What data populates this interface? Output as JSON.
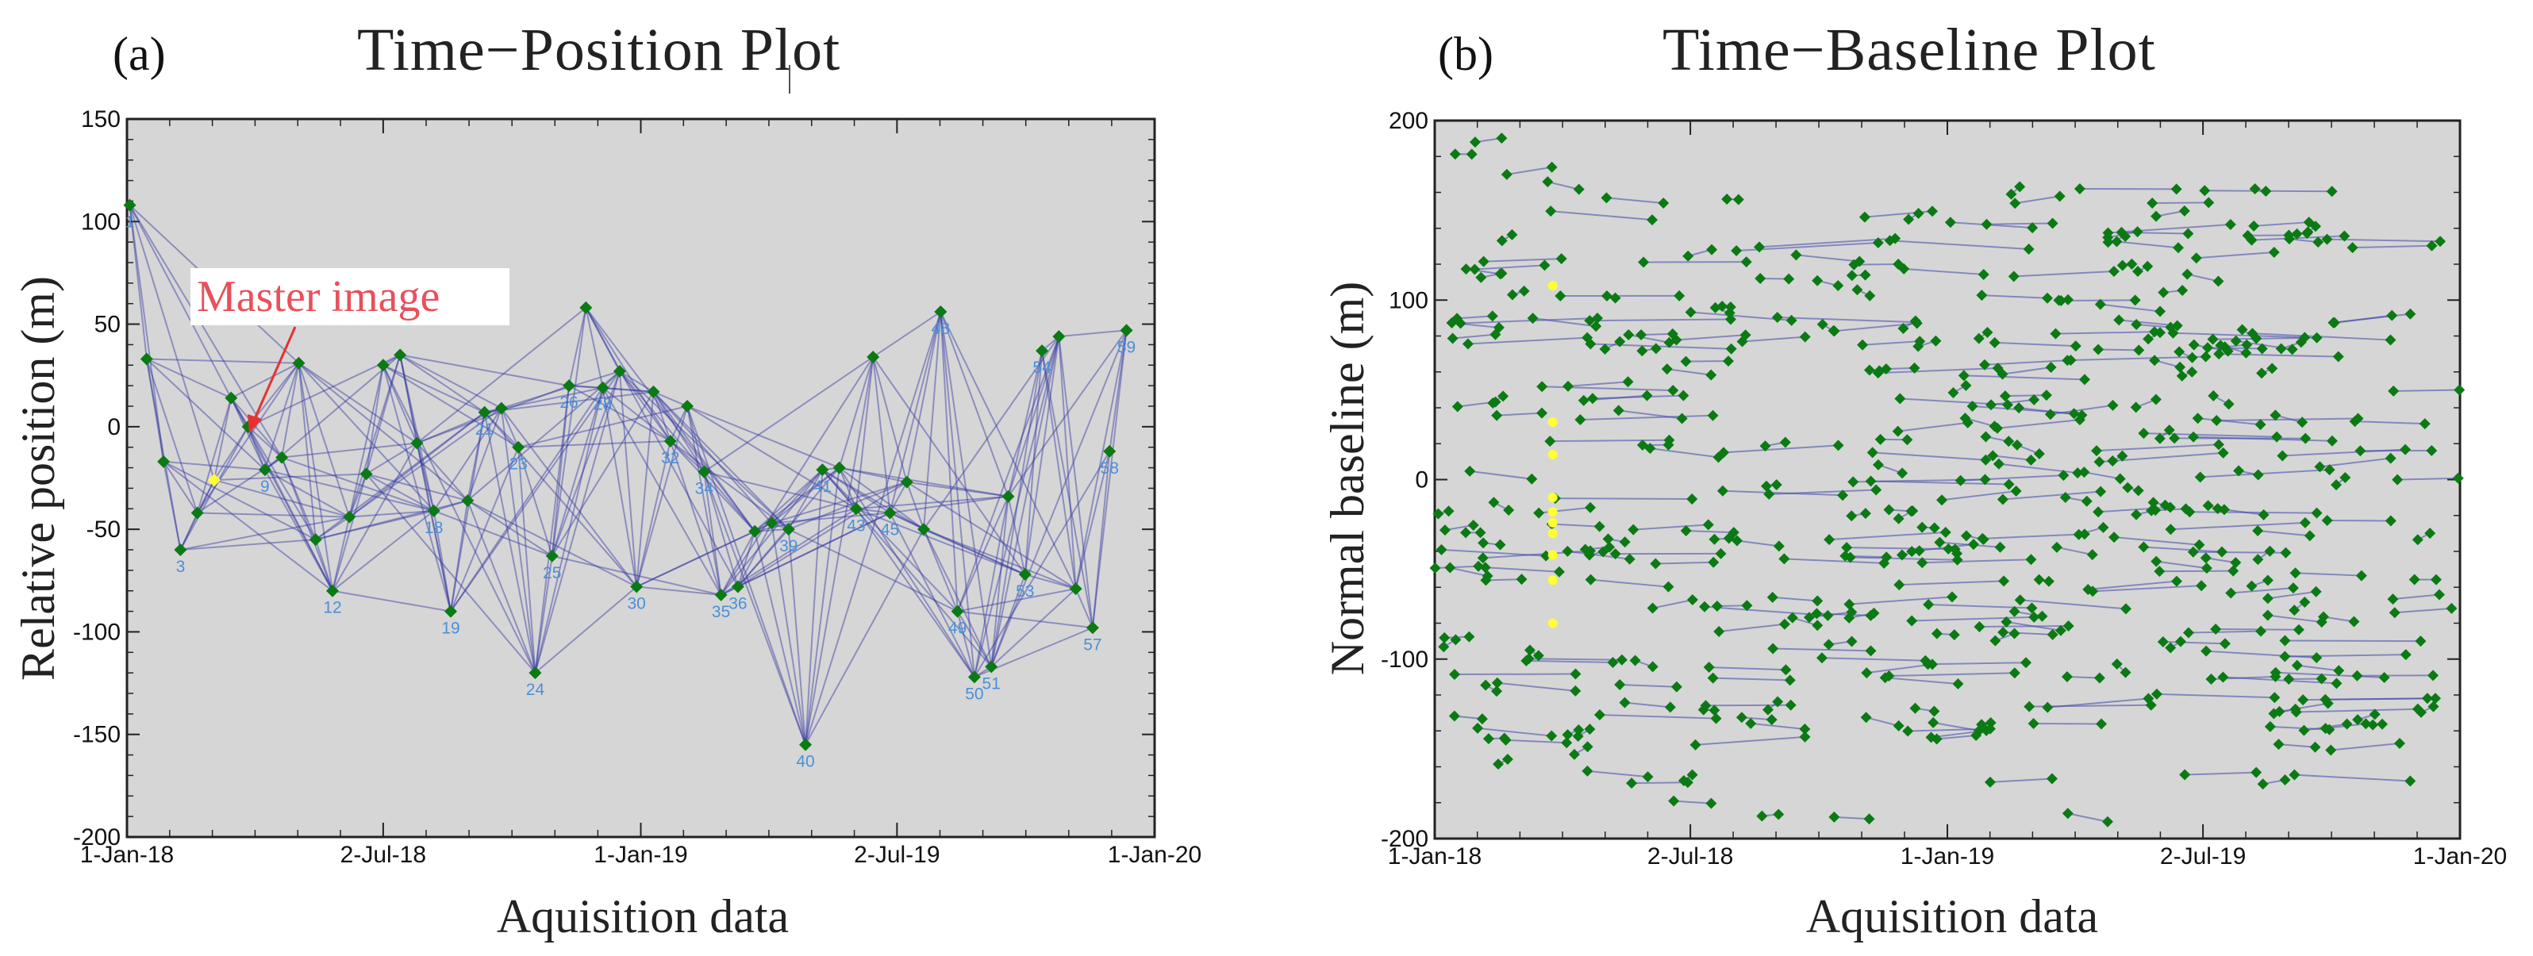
{
  "chart_data": [
    {
      "type": "scatter",
      "panel_label": "(a)",
      "title": "Time−Position Plot",
      "xlabel": "Aquisition data",
      "ylabel": "Relative position (m)",
      "xlim": [
        0,
        730
      ],
      "ylim": [
        -200,
        150
      ],
      "yticks": [
        150,
        100,
        50,
        0,
        -50,
        -100,
        -150,
        -200
      ],
      "xticks": [
        {
          "value": 0,
          "label": "1-Jan-18"
        },
        {
          "value": 182,
          "label": "2-Jul-18"
        },
        {
          "value": 365,
          "label": "1-Jan-19"
        },
        {
          "value": 547,
          "label": "2-Jul-19"
        },
        {
          "value": 730,
          "label": "1-Jan-20"
        }
      ],
      "master_index": 5,
      "annotation": "Master image",
      "points": [
        {
          "x": 2,
          "y": 108,
          "label": "1"
        },
        {
          "x": 14,
          "y": 33,
          "label": ""
        },
        {
          "x": 26,
          "y": -17,
          "label": ""
        },
        {
          "x": 38,
          "y": -60,
          "label": "3"
        },
        {
          "x": 50,
          "y": -42,
          "label": ""
        },
        {
          "x": 62,
          "y": -26,
          "label": ""
        },
        {
          "x": 74,
          "y": 14,
          "label": ""
        },
        {
          "x": 86,
          "y": 0,
          "label": ""
        },
        {
          "x": 98,
          "y": -21,
          "label": "9"
        },
        {
          "x": 110,
          "y": -15,
          "label": ""
        },
        {
          "x": 122,
          "y": 31,
          "label": ""
        },
        {
          "x": 134,
          "y": -55,
          "label": ""
        },
        {
          "x": 146,
          "y": -80,
          "label": "12"
        },
        {
          "x": 158,
          "y": -44,
          "label": ""
        },
        {
          "x": 170,
          "y": -23,
          "label": ""
        },
        {
          "x": 182,
          "y": 30,
          "label": ""
        },
        {
          "x": 194,
          "y": 35,
          "label": ""
        },
        {
          "x": 206,
          "y": -8,
          "label": ""
        },
        {
          "x": 218,
          "y": -41,
          "label": "18"
        },
        {
          "x": 230,
          "y": -90,
          "label": "19"
        },
        {
          "x": 242,
          "y": -36,
          "label": ""
        },
        {
          "x": 254,
          "y": 7,
          "label": "21"
        },
        {
          "x": 266,
          "y": 9,
          "label": ""
        },
        {
          "x": 278,
          "y": -10,
          "label": "23"
        },
        {
          "x": 290,
          "y": -120,
          "label": "24"
        },
        {
          "x": 302,
          "y": -63,
          "label": "25"
        },
        {
          "x": 314,
          "y": 20,
          "label": "26"
        },
        {
          "x": 326,
          "y": 58,
          "label": ""
        },
        {
          "x": 338,
          "y": 19,
          "label": "28"
        },
        {
          "x": 350,
          "y": 27,
          "label": ""
        },
        {
          "x": 362,
          "y": -78,
          "label": "30"
        },
        {
          "x": 374,
          "y": 17,
          "label": ""
        },
        {
          "x": 386,
          "y": -7,
          "label": "32"
        },
        {
          "x": 398,
          "y": 10,
          "label": ""
        },
        {
          "x": 410,
          "y": -22,
          "label": "34"
        },
        {
          "x": 422,
          "y": -82,
          "label": "35"
        },
        {
          "x": 434,
          "y": -78,
          "label": "36"
        },
        {
          "x": 446,
          "y": -51,
          "label": ""
        },
        {
          "x": 458,
          "y": -47,
          "label": ""
        },
        {
          "x": 470,
          "y": -50,
          "label": "39"
        },
        {
          "x": 482,
          "y": -155,
          "label": "40"
        },
        {
          "x": 494,
          "y": -21,
          "label": "41"
        },
        {
          "x": 506,
          "y": -20,
          "label": ""
        },
        {
          "x": 518,
          "y": -40,
          "label": "43"
        },
        {
          "x": 530,
          "y": 34,
          "label": ""
        },
        {
          "x": 542,
          "y": -42,
          "label": "45"
        },
        {
          "x": 554,
          "y": -27,
          "label": ""
        },
        {
          "x": 566,
          "y": -50,
          "label": ""
        },
        {
          "x": 578,
          "y": 56,
          "label": "48"
        },
        {
          "x": 590,
          "y": -90,
          "label": "49"
        },
        {
          "x": 602,
          "y": -122,
          "label": "50"
        },
        {
          "x": 614,
          "y": -117,
          "label": "51"
        },
        {
          "x": 626,
          "y": -34,
          "label": ""
        },
        {
          "x": 638,
          "y": -72,
          "label": "53"
        },
        {
          "x": 650,
          "y": 37,
          "label": "54"
        },
        {
          "x": 662,
          "y": 44,
          "label": ""
        },
        {
          "x": 674,
          "y": -79,
          "label": ""
        },
        {
          "x": 686,
          "y": -98,
          "label": "57"
        },
        {
          "x": 698,
          "y": -12,
          "label": "58"
        },
        {
          "x": 710,
          "y": 47,
          "label": "59"
        }
      ]
    },
    {
      "type": "scatter",
      "panel_label": "(b)",
      "title": "Time−Baseline Plot",
      "xlabel": "Aquisition data",
      "ylabel": "Normal baseline (m)",
      "xlim": [
        0,
        730
      ],
      "ylim": [
        -200,
        200
      ],
      "yticks": [
        200,
        100,
        0,
        -100,
        -200
      ],
      "xticks": [
        {
          "value": 0,
          "label": "1-Jan-18"
        },
        {
          "value": 182,
          "label": "2-Jul-18"
        },
        {
          "value": 365,
          "label": "1-Jan-19"
        },
        {
          "value": 547,
          "label": "2-Jul-19"
        },
        {
          "value": 730,
          "label": "1-Jan-20"
        }
      ],
      "master_day": 84,
      "master_baselines": [
        108,
        32,
        14,
        -10,
        -18,
        -24,
        -30,
        -42,
        -56,
        -80
      ],
      "approx_interferogram_pairs": 360
    }
  ]
}
